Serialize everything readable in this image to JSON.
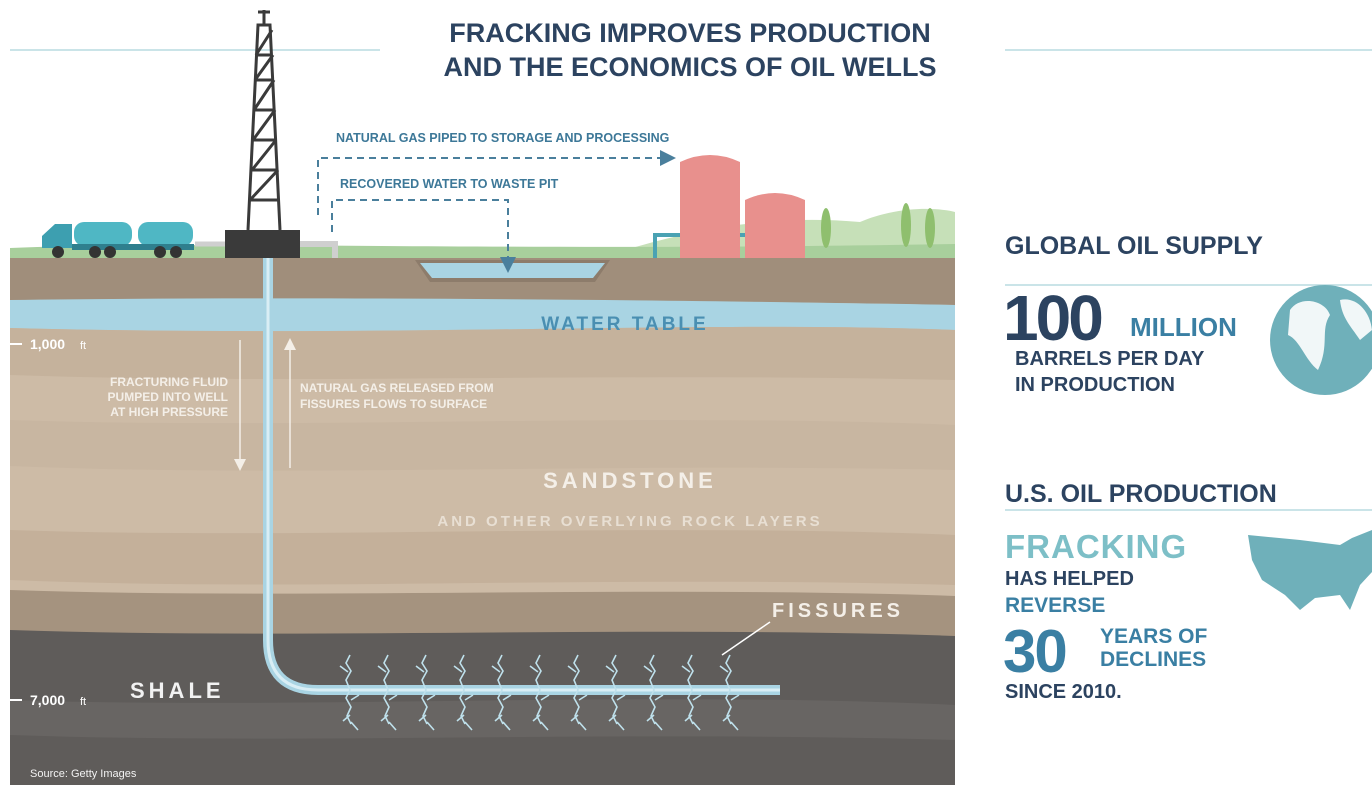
{
  "header": {
    "title": [
      "FRACKING IMPROVES PRODUCTION",
      "AND THE ECONOMICS OF OIL WELLS"
    ]
  },
  "diagram": {
    "arrows": {
      "gas": "NATURAL GAS PIPED TO STORAGE AND PROCESSING",
      "water": "RECOVERED WATER TO WASTE PIT"
    },
    "water_table": "WATER TABLE",
    "depths": [
      {
        "value": "1,000",
        "unit": "ft"
      },
      {
        "value": "7,000",
        "unit": "ft"
      }
    ],
    "fluid_note": [
      "FRACTURING FLUID",
      "PUMPED INTO WELL",
      "AT HIGH PRESSURE"
    ],
    "gas_note": [
      "NATURAL GAS RELEASED FROM",
      "FISSURES FLOWS TO SURFACE"
    ],
    "layers": {
      "sandstone": "SANDSTONE",
      "sandstone_sub": "AND OTHER OVERLYING ROCK LAYERS",
      "shale": "SHALE"
    },
    "fissures": "FISSURES",
    "source": "Source: Getty Images"
  },
  "panels": [
    {
      "title": "GLOBAL OIL SUPPLY",
      "figure": "100",
      "unit": "MILLION",
      "lines": [
        "BARRELS PER DAY",
        "IN PRODUCTION"
      ]
    },
    {
      "title": "U.S. OIL PRODUCTION",
      "lead": "FRACKING",
      "lines": [
        "HAS HELPED",
        "REVERSE"
      ],
      "figure": "30",
      "unit": [
        "YEARS OF",
        "DECLINES"
      ],
      "closing": "SINCE 2010."
    }
  ]
}
